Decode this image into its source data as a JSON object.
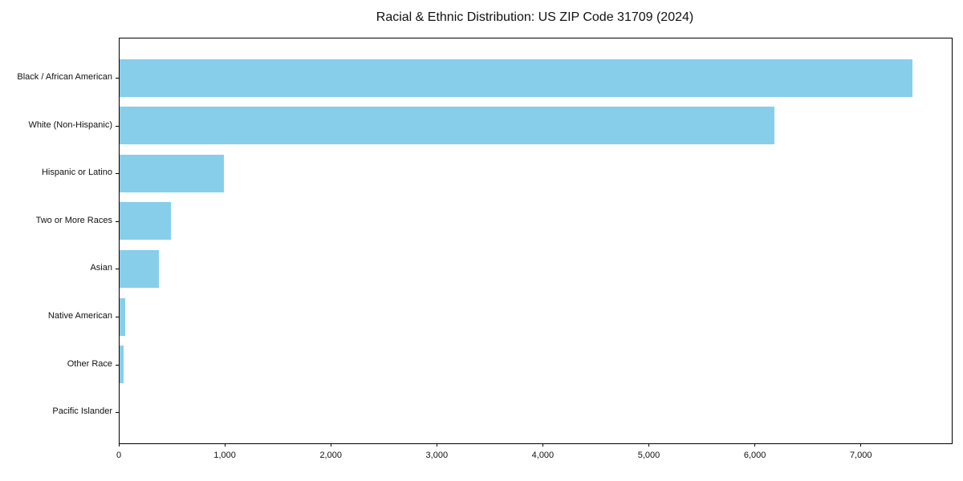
{
  "page": {
    "background": "#ffffff"
  },
  "chart_data": {
    "type": "bar",
    "orientation": "horizontal",
    "title": "Racial & Ethnic Distribution: US ZIP Code 31709 (2024)",
    "categories": [
      "Black / African American",
      "White (Non-Hispanic)",
      "Hispanic or Latino",
      "Two or More Races",
      "Asian",
      "Native American",
      "Other Race",
      "Pacific Islander"
    ],
    "values": [
      7480,
      6175,
      985,
      485,
      370,
      50,
      40,
      0
    ],
    "xlabel": "",
    "ylabel": "",
    "xlim": [
      0,
      7850
    ],
    "x_ticks": [
      0,
      1000,
      2000,
      3000,
      4000,
      5000,
      6000,
      7000
    ],
    "x_tick_labels": [
      "0",
      "1,000",
      "2,000",
      "3,000",
      "4,000",
      "5,000",
      "6,000",
      "7,000"
    ],
    "bar_color": "#87CEEB",
    "axis_color": "#000000",
    "text_color": "#111111",
    "grid": false,
    "legend": "none"
  }
}
